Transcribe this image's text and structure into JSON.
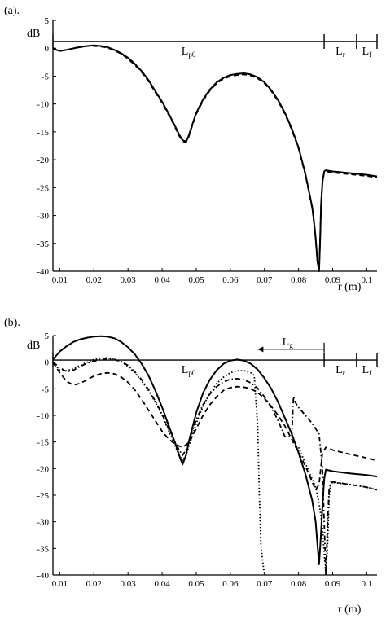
{
  "chart_data": [
    {
      "type": "line",
      "panel_label": "(a).",
      "ylabel": "dB",
      "xlabel": "r (m)",
      "xlim": [
        0.008,
        0.103
      ],
      "ylim": [
        -40,
        5
      ],
      "x_ticks": [
        "0.01",
        "0.02",
        "0.03",
        "0.04",
        "0.05",
        "0.06",
        "0.07",
        "0.08",
        "0.09",
        "0.1"
      ],
      "y_ticks": [
        "5",
        "0",
        "-5",
        "-10",
        "-15",
        "-20",
        "-25",
        "-30",
        "-35",
        "-40"
      ],
      "segments": [
        {
          "label_main": "L",
          "label_sub": "p0",
          "from": 0.008,
          "to": 0.0875
        },
        {
          "label_main": "L",
          "label_sub": "r",
          "from": 0.0875,
          "to": 0.097
        },
        {
          "label_main": "L",
          "label_sub": "f",
          "from": 0.097,
          "to": 0.103
        }
      ],
      "segment_line_y": 1.2,
      "series": [
        {
          "style": "solid",
          "x": [
            0.008,
            0.009,
            0.01,
            0.012,
            0.015,
            0.018,
            0.02,
            0.022,
            0.024,
            0.026,
            0.028,
            0.03,
            0.032,
            0.034,
            0.036,
            0.038,
            0.04,
            0.042,
            0.044,
            0.045,
            0.046,
            0.047,
            0.0475,
            0.048,
            0.049,
            0.05,
            0.052,
            0.054,
            0.056,
            0.058,
            0.06,
            0.062,
            0.064,
            0.066,
            0.068,
            0.07,
            0.072,
            0.074,
            0.076,
            0.078,
            0.08,
            0.082,
            0.084,
            0.0845,
            0.085,
            0.0855,
            0.086,
            0.0863,
            0.0866,
            0.087,
            0.0875,
            0.088,
            0.09,
            0.095,
            0.1,
            0.103
          ],
          "y": [
            0,
            -0.3,
            -0.5,
            -0.3,
            0.1,
            0.4,
            0.5,
            0.4,
            0.2,
            -0.3,
            -0.9,
            -1.7,
            -2.8,
            -4.1,
            -5.7,
            -7.7,
            -9.6,
            -11.8,
            -14.2,
            -15.5,
            -16.5,
            -16.7,
            -16.2,
            -15.3,
            -13.4,
            -11.6,
            -9.2,
            -7.4,
            -6.1,
            -5.3,
            -4.8,
            -4.6,
            -4.5,
            -4.7,
            -5.2,
            -6.1,
            -7.5,
            -9.3,
            -11.6,
            -14.4,
            -17.8,
            -22.5,
            -28.5,
            -31,
            -34,
            -38,
            -40,
            -35,
            -28,
            -24,
            -22.1,
            -21.9,
            -22.1,
            -22.4,
            -22.7,
            -23.0
          ]
        },
        {
          "style": "dashed",
          "x": [
            0.008,
            0.009,
            0.01,
            0.012,
            0.015,
            0.018,
            0.02,
            0.022,
            0.024,
            0.026,
            0.028,
            0.03,
            0.032,
            0.034,
            0.036,
            0.038,
            0.04,
            0.042,
            0.044,
            0.045,
            0.046,
            0.047,
            0.0475,
            0.048,
            0.049,
            0.05,
            0.052,
            0.054,
            0.056,
            0.058,
            0.06,
            0.062,
            0.064,
            0.066,
            0.068,
            0.07,
            0.072,
            0.074,
            0.076,
            0.078,
            0.08,
            0.082,
            0.084,
            0.0845,
            0.085,
            0.0855,
            0.086,
            0.0863,
            0.0866,
            0.087,
            0.0875,
            0.088,
            0.09,
            0.095,
            0.1,
            0.103
          ],
          "y": [
            0,
            -0.3,
            -0.5,
            -0.3,
            0.1,
            0.4,
            0.4,
            0.3,
            0.1,
            -0.4,
            -1.0,
            -1.9,
            -3.0,
            -4.3,
            -5.9,
            -7.9,
            -9.8,
            -12.0,
            -14.4,
            -15.7,
            -16.7,
            -16.9,
            -16.4,
            -15.5,
            -13.6,
            -11.8,
            -9.4,
            -7.6,
            -6.3,
            -5.5,
            -5.0,
            -4.8,
            -4.7,
            -4.9,
            -5.4,
            -6.3,
            -7.7,
            -9.5,
            -11.8,
            -14.6,
            -18.0,
            -22.7,
            -28.7,
            -31.2,
            -34.2,
            -38.2,
            -40,
            -35,
            -28,
            -24,
            -22.3,
            -22.1,
            -22.3,
            -22.6,
            -22.9,
            -23.2
          ]
        }
      ]
    },
    {
      "type": "line",
      "panel_label": "(b).",
      "ylabel": "dB",
      "xlabel": "r (m)",
      "xlim": [
        0.008,
        0.103
      ],
      "ylim": [
        -40,
        5
      ],
      "x_ticks": [
        "0.01",
        "0.02",
        "0.03",
        "0.04",
        "0.05",
        "0.06",
        "0.07",
        "0.08",
        "0.09",
        "0.1"
      ],
      "y_ticks": [
        "5",
        "0",
        "-5",
        "-10",
        "-15",
        "-20",
        "-25",
        "-30",
        "-35",
        "-40"
      ],
      "segments": [
        {
          "label_main": "L",
          "label_sub": "p0",
          "from": 0.008,
          "to": 0.0875
        },
        {
          "label_main": "L",
          "label_sub": "r",
          "from": 0.0875,
          "to": 0.097
        },
        {
          "label_main": "L",
          "label_sub": "f",
          "from": 0.097,
          "to": 0.103
        }
      ],
      "segment_line_y": 0.4,
      "arrow": {
        "label_main": "L",
        "label_sub": "g",
        "from": 0.0875,
        "to": 0.068,
        "y": 1.2
      },
      "series": [
        {
          "style": "solid",
          "x": [
            0.008,
            0.01,
            0.012,
            0.014,
            0.016,
            0.018,
            0.02,
            0.022,
            0.024,
            0.026,
            0.028,
            0.03,
            0.032,
            0.034,
            0.036,
            0.038,
            0.04,
            0.042,
            0.044,
            0.045,
            0.046,
            0.047,
            0.048,
            0.05,
            0.052,
            0.054,
            0.056,
            0.058,
            0.06,
            0.062,
            0.064,
            0.066,
            0.068,
            0.07,
            0.072,
            0.074,
            0.076,
            0.078,
            0.08,
            0.082,
            0.084,
            0.085,
            0.0855,
            0.086,
            0.0865,
            0.087,
            0.0875,
            0.088,
            0.09,
            0.095,
            0.1,
            0.103
          ],
          "y": [
            0.5,
            2.0,
            3.0,
            3.8,
            4.3,
            4.6,
            4.8,
            4.9,
            4.8,
            4.5,
            3.8,
            2.8,
            1.5,
            -0.3,
            -2.5,
            -5.3,
            -8.5,
            -12.0,
            -15.5,
            -17.5,
            -19.2,
            -17.5,
            -14.5,
            -9.5,
            -5.8,
            -3.3,
            -1.5,
            -0.3,
            0.3,
            0.5,
            0.3,
            -0.3,
            -1.4,
            -3.0,
            -5.0,
            -7.5,
            -10.5,
            -13.5,
            -17.0,
            -21.0,
            -26.0,
            -30.0,
            -34.0,
            -38.0,
            -33.0,
            -27.0,
            -22.0,
            -20.2,
            -20.5,
            -20.9,
            -21.2,
            -21.5
          ]
        },
        {
          "style": "dotted",
          "x": [
            0.008,
            0.01,
            0.012,
            0.014,
            0.016,
            0.018,
            0.02,
            0.022,
            0.024,
            0.026,
            0.028,
            0.03,
            0.032,
            0.034,
            0.036,
            0.038,
            0.04,
            0.042,
            0.044,
            0.045,
            0.046,
            0.047,
            0.048,
            0.05,
            0.052,
            0.054,
            0.056,
            0.058,
            0.06,
            0.062,
            0.064,
            0.066,
            0.067,
            0.068,
            0.0685,
            0.069,
            0.07
          ],
          "y": [
            0,
            -1.5,
            -1.6,
            -1.2,
            -0.6,
            0,
            0.5,
            0.8,
            0.8,
            0.6,
            0.1,
            -0.8,
            -2.0,
            -3.5,
            -5.3,
            -7.5,
            -10.0,
            -13.0,
            -16.0,
            -17.5,
            -18.5,
            -17.5,
            -15.5,
            -11.5,
            -8.3,
            -5.8,
            -4.0,
            -2.8,
            -2.0,
            -1.6,
            -1.6,
            -2.0,
            -2.5,
            -12.0,
            -25.0,
            -35.0,
            -40.0
          ]
        },
        {
          "style": "dotted",
          "x": [
            0.08,
            0.082,
            0.084,
            0.085,
            0.086,
            0.087,
            0.0875,
            0.088,
            0.0885,
            0.089,
            0.0895,
            0.09,
            0.095,
            0.1,
            0.103
          ],
          "y": [
            -16.0,
            -19.0,
            -22.0,
            -23.5,
            -26.5,
            -31.0,
            -36.0,
            -40.0,
            -34.0,
            -25.0,
            -22.5,
            -22.6,
            -23.0,
            -23.5,
            -24.0
          ]
        },
        {
          "style": "dashdot",
          "x": [
            0.008,
            0.01,
            0.012,
            0.014,
            0.016,
            0.018,
            0.02,
            0.022,
            0.024,
            0.026,
            0.028,
            0.03,
            0.032,
            0.034,
            0.036,
            0.038,
            0.04,
            0.042,
            0.044,
            0.045,
            0.046,
            0.047,
            0.048,
            0.05,
            0.052,
            0.054,
            0.056,
            0.058,
            0.06,
            0.062,
            0.064,
            0.066,
            0.068,
            0.07,
            0.072,
            0.074,
            0.076,
            0.078,
            0.0785,
            0.079,
            0.08,
            0.082,
            0.084,
            0.086,
            0.087,
            0.0875,
            0.088,
            0.0885,
            0.089,
            0.09,
            0.095,
            0.1,
            0.103
          ],
          "y": [
            0,
            -1.0,
            -1.8,
            -1.5,
            -0.8,
            -0.2,
            0.2,
            0.5,
            0.6,
            0.5,
            0.1,
            -0.6,
            -1.8,
            -3.3,
            -5.1,
            -7.3,
            -9.8,
            -12.6,
            -15.3,
            -16.5,
            -17.5,
            -16.5,
            -14.5,
            -10.8,
            -8.0,
            -6.0,
            -4.6,
            -3.7,
            -3.2,
            -3.1,
            -3.3,
            -3.9,
            -4.9,
            -6.5,
            -8.5,
            -11.0,
            -14.0,
            -14.0,
            -6.5,
            -7.5,
            -8.5,
            -10.0,
            -11.5,
            -13.5,
            -20.0,
            -30.0,
            -40.0,
            -30.0,
            -23.5,
            -22.5,
            -23.0,
            -23.5,
            -24.0
          ]
        },
        {
          "style": "dashed",
          "x": [
            0.008,
            0.01,
            0.012,
            0.014,
            0.016,
            0.018,
            0.02,
            0.022,
            0.024,
            0.026,
            0.028,
            0.03,
            0.032,
            0.034,
            0.036,
            0.038,
            0.04,
            0.042,
            0.044,
            0.046,
            0.048,
            0.05,
            0.052,
            0.054,
            0.056,
            0.058,
            0.06,
            0.062,
            0.064,
            0.066,
            0.068,
            0.07,
            0.072,
            0.074,
            0.076,
            0.078,
            0.08,
            0.082,
            0.084,
            0.085,
            0.086,
            0.0865,
            0.087,
            0.088,
            0.09,
            0.095,
            0.1,
            0.103
          ],
          "y": [
            0,
            -2.0,
            -3.6,
            -4.3,
            -4.0,
            -3.3,
            -2.6,
            -2.2,
            -2.0,
            -2.2,
            -2.8,
            -3.8,
            -5.2,
            -7.0,
            -9.0,
            -11.0,
            -13.0,
            -14.5,
            -15.5,
            -16.0,
            -15.0,
            -12.5,
            -10.0,
            -8.0,
            -6.5,
            -5.3,
            -4.8,
            -4.6,
            -4.7,
            -5.0,
            -5.7,
            -6.8,
            -8.3,
            -10.0,
            -12.0,
            -14.5,
            -17.0,
            -19.5,
            -22.5,
            -24.0,
            -23.0,
            -20.0,
            -17.0,
            -16.0,
            -16.5,
            -17.3,
            -18.0,
            -18.5
          ]
        }
      ]
    }
  ]
}
